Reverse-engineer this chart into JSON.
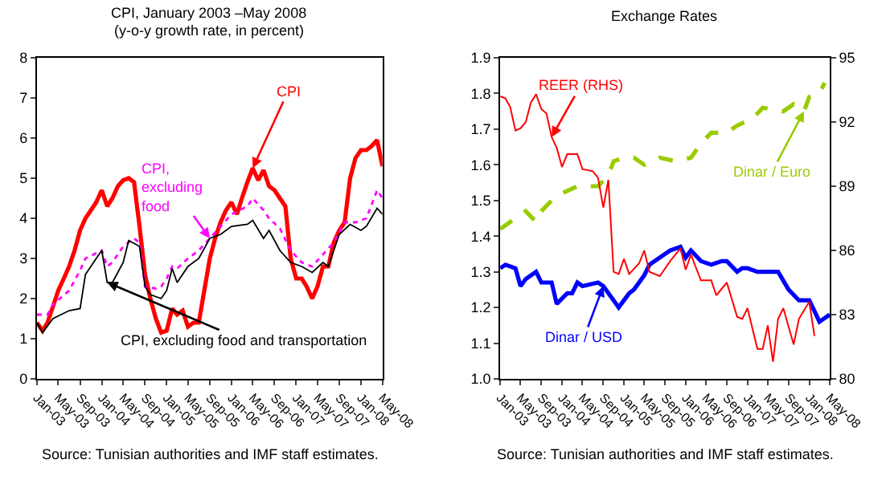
{
  "chart_data": [
    {
      "type": "line",
      "title": "CPI, January 2003 –May 2008",
      "subtitle": "(y-o-y growth rate, in percent)",
      "xlim": [
        "2003-01",
        "2008-05"
      ],
      "xticks": [
        {
          "value": "2003-01",
          "label": "Jan-03"
        },
        {
          "value": "2003-05",
          "label": "May-03"
        },
        {
          "value": "2003-09",
          "label": "Sep-03"
        },
        {
          "value": "2004-01",
          "label": "Jan-04"
        },
        {
          "value": "2004-05",
          "label": "May-04"
        },
        {
          "value": "2004-09",
          "label": "Sep-04"
        },
        {
          "value": "2005-01",
          "label": "Jan-05"
        },
        {
          "value": "2005-05",
          "label": "May-05"
        },
        {
          "value": "2005-09",
          "label": "Sep-05"
        },
        {
          "value": "2006-01",
          "label": "Jan-06"
        },
        {
          "value": "2006-05",
          "label": "May-06"
        },
        {
          "value": "2006-09",
          "label": "Sep-06"
        },
        {
          "value": "2007-01",
          "label": "Jan-07"
        },
        {
          "value": "2007-05",
          "label": "May-07"
        },
        {
          "value": "2007-09",
          "label": "Sep-07"
        },
        {
          "value": "2008-01",
          "label": "Jan-08"
        },
        {
          "value": "2008-05",
          "label": "May-08"
        }
      ],
      "ylim": [
        0,
        8
      ],
      "yticks": [
        0,
        1,
        2,
        3,
        4,
        5,
        6,
        7,
        8
      ],
      "series": [
        {
          "name": "CPI",
          "color": "#ff0000",
          "line_style": "solid",
          "x": [
            "2003-01",
            "2003-02",
            "2003-03",
            "2003-04",
            "2003-05",
            "2003-06",
            "2003-07",
            "2003-08",
            "2003-09",
            "2003-10",
            "2003-11",
            "2003-12",
            "2004-01",
            "2004-02",
            "2004-03",
            "2004-04",
            "2004-05",
            "2004-06",
            "2004-07",
            "2004-08",
            "2004-09",
            "2004-10",
            "2004-11",
            "2004-12",
            "2005-01",
            "2005-02",
            "2005-03",
            "2005-04",
            "2005-05",
            "2005-06",
            "2005-07",
            "2005-08",
            "2005-09",
            "2005-10",
            "2005-11",
            "2005-12",
            "2006-01",
            "2006-02",
            "2006-03",
            "2006-04",
            "2006-05",
            "2006-06",
            "2006-07",
            "2006-08",
            "2006-09",
            "2006-10",
            "2006-11",
            "2006-12",
            "2007-01",
            "2007-02",
            "2007-03",
            "2007-04",
            "2007-05",
            "2007-06",
            "2007-07",
            "2007-08",
            "2007-09",
            "2007-10",
            "2007-11",
            "2007-12",
            "2008-01",
            "2008-02",
            "2008-03",
            "2008-04",
            "2008-05"
          ],
          "values": [
            1.4,
            1.2,
            1.4,
            1.8,
            2.2,
            2.5,
            2.8,
            3.2,
            3.7,
            4.0,
            4.2,
            4.4,
            4.7,
            4.3,
            4.5,
            4.8,
            4.95,
            5.0,
            4.9,
            3.8,
            2.6,
            2.0,
            1.5,
            1.15,
            1.2,
            1.75,
            1.6,
            1.7,
            1.3,
            1.4,
            1.4,
            2.2,
            3.0,
            3.5,
            3.9,
            4.2,
            4.4,
            4.1,
            4.5,
            4.9,
            5.25,
            4.95,
            5.2,
            4.8,
            4.7,
            4.5,
            4.3,
            3.0,
            2.5,
            2.5,
            2.3,
            2.0,
            2.3,
            2.8,
            2.8,
            3.4,
            3.7,
            3.9,
            5.0,
            5.5,
            5.7,
            5.7,
            5.8,
            5.95,
            5.3
          ]
        },
        {
          "name": "CPI, excluding food",
          "color": "#ff00ff",
          "line_style": "dotted",
          "x": [
            "2003-01",
            "2003-03",
            "2003-04",
            "2003-07",
            "2003-09",
            "2003-10",
            "2004-01",
            "2004-02",
            "2004-03",
            "2004-05",
            "2004-07",
            "2004-08",
            "2004-09",
            "2004-11",
            "2004-12",
            "2005-01",
            "2005-02",
            "2005-03",
            "2005-05",
            "2005-07",
            "2005-09",
            "2005-11",
            "2006-01",
            "2006-04",
            "2006-05",
            "2006-07",
            "2006-08",
            "2006-10",
            "2006-12",
            "2007-02",
            "2007-04",
            "2007-06",
            "2007-08",
            "2007-10",
            "2007-12",
            "2008-02",
            "2008-04",
            "2008-05"
          ],
          "values": [
            1.6,
            1.6,
            1.85,
            2.2,
            2.7,
            3.0,
            3.2,
            2.8,
            2.9,
            3.3,
            3.5,
            3.4,
            2.3,
            2.25,
            2.3,
            2.5,
            2.8,
            2.75,
            3.0,
            3.2,
            3.5,
            3.8,
            4.1,
            4.3,
            4.5,
            4.2,
            4.0,
            3.75,
            3.2,
            2.9,
            2.8,
            3.1,
            3.4,
            3.9,
            3.9,
            4.0,
            4.7,
            4.5
          ]
        },
        {
          "name": "CPI, excluding food and transportation",
          "color": "#000000",
          "line_style": "solid",
          "x": [
            "2003-01",
            "2003-02",
            "2003-04",
            "2003-07",
            "2003-09",
            "2003-10",
            "2003-12",
            "2004-01",
            "2004-02",
            "2004-03",
            "2004-05",
            "2004-06",
            "2004-08",
            "2004-09",
            "2004-10",
            "2004-12",
            "2005-01",
            "2005-02",
            "2005-03",
            "2005-05",
            "2005-07",
            "2005-09",
            "2005-11",
            "2006-01",
            "2006-04",
            "2006-05",
            "2006-07",
            "2006-08",
            "2006-10",
            "2006-12",
            "2007-02",
            "2007-04",
            "2007-06",
            "2007-07",
            "2007-09",
            "2007-11",
            "2008-01",
            "2008-02",
            "2008-04",
            "2008-05"
          ],
          "values": [
            1.4,
            1.15,
            1.5,
            1.7,
            1.75,
            2.6,
            3.0,
            3.2,
            2.4,
            2.4,
            2.9,
            3.45,
            3.3,
            2.3,
            2.1,
            2.0,
            2.2,
            2.75,
            2.4,
            2.8,
            3.0,
            3.5,
            3.6,
            3.8,
            3.85,
            3.95,
            3.5,
            3.7,
            3.2,
            2.9,
            2.8,
            2.65,
            2.9,
            2.8,
            3.6,
            3.85,
            3.7,
            3.8,
            4.25,
            4.1
          ]
        }
      ],
      "annotations": [
        "Source: Tunisian authorities and IMF staff estimates."
      ]
    },
    {
      "type": "line",
      "title": "Exchange Rates",
      "xlim": [
        "2003-01",
        "2008-05"
      ],
      "xticks": [
        {
          "value": "2003-01",
          "label": "Jan-03"
        },
        {
          "value": "2003-05",
          "label": "May-03"
        },
        {
          "value": "2003-09",
          "label": "Sep-03"
        },
        {
          "value": "2004-01",
          "label": "Jan-04"
        },
        {
          "value": "2004-05",
          "label": "May-04"
        },
        {
          "value": "2004-09",
          "label": "Sep-04"
        },
        {
          "value": "2005-01",
          "label": "Jan-05"
        },
        {
          "value": "2005-05",
          "label": "May-05"
        },
        {
          "value": "2005-09",
          "label": "Sep-05"
        },
        {
          "value": "2006-01",
          "label": "Jan-06"
        },
        {
          "value": "2006-05",
          "label": "May-06"
        },
        {
          "value": "2006-09",
          "label": "Sep-06"
        },
        {
          "value": "2007-01",
          "label": "Jan-07"
        },
        {
          "value": "2007-05",
          "label": "May-07"
        },
        {
          "value": "2007-09",
          "label": "Sep-07"
        },
        {
          "value": "2008-01",
          "label": "Jan-08"
        },
        {
          "value": "2008-05",
          "label": "May-08"
        }
      ],
      "ylim": [
        1.0,
        1.9
      ],
      "yticks": [
        {
          "value": 1.0,
          "label": "1.0"
        },
        1.1,
        1.2,
        1.3,
        1.4,
        1.5,
        1.6,
        1.7,
        1.8,
        1.9
      ],
      "y2lim": [
        80,
        95
      ],
      "y2ticks": [
        80,
        83,
        86,
        89,
        92,
        95
      ],
      "series": [
        {
          "name": "REER (RHS)",
          "color": "#ff0000",
          "line_style": "solid",
          "axis": "y2",
          "x": [
            "2003-01",
            "2003-02",
            "2003-03",
            "2003-04",
            "2003-05",
            "2003-06",
            "2003-07",
            "2003-08",
            "2003-09",
            "2003-10",
            "2003-11",
            "2003-12",
            "2004-01",
            "2004-02",
            "2004-04",
            "2004-05",
            "2004-07",
            "2004-08",
            "2004-09",
            "2004-10",
            "2004-11",
            "2004-12",
            "2005-01",
            "2005-02",
            "2005-04",
            "2005-05",
            "2005-06",
            "2005-08",
            "2005-10",
            "2005-12",
            "2006-01",
            "2006-02",
            "2006-04",
            "2006-06",
            "2006-07",
            "2006-09",
            "2006-11",
            "2006-12",
            "2007-01",
            "2007-03",
            "2007-04",
            "2007-05",
            "2007-06",
            "2007-07",
            "2007-08",
            "2007-10",
            "2007-11",
            "2008-01",
            "2008-02"
          ],
          "values": [
            93.2,
            93.1,
            92.7,
            91.6,
            91.7,
            92.0,
            92.9,
            93.3,
            92.6,
            92.4,
            91.3,
            90.8,
            89.9,
            90.5,
            90.5,
            89.8,
            89.7,
            89.4,
            88.0,
            89.3,
            85.0,
            84.9,
            85.6,
            84.9,
            85.4,
            86.0,
            85.0,
            84.8,
            85.5,
            86.1,
            85.1,
            85.8,
            84.6,
            84.6,
            83.9,
            84.5,
            82.9,
            82.8,
            83.3,
            81.4,
            81.4,
            82.5,
            80.8,
            82.8,
            83.3,
            81.6,
            82.8,
            83.6,
            82.0
          ]
        },
        {
          "name": "Dinar / USD",
          "color": "#0000ff",
          "line_style": "solid",
          "x": [
            "2003-01",
            "2003-02",
            "2003-04",
            "2003-05",
            "2003-06",
            "2003-08",
            "2003-09",
            "2003-11",
            "2003-12",
            "2004-02",
            "2004-03",
            "2004-04",
            "2004-05",
            "2004-08",
            "2004-09",
            "2004-11",
            "2004-12",
            "2005-02",
            "2005-03",
            "2005-05",
            "2005-06",
            "2005-07",
            "2005-09",
            "2005-10",
            "2005-12",
            "2006-01",
            "2006-02",
            "2006-04",
            "2006-06",
            "2006-08",
            "2006-09",
            "2006-11",
            "2006-12",
            "2007-01",
            "2007-03",
            "2007-07",
            "2007-09",
            "2007-11",
            "2008-01",
            "2008-02",
            "2008-03",
            "2008-04",
            "2008-05"
          ],
          "values": [
            1.31,
            1.32,
            1.31,
            1.26,
            1.28,
            1.3,
            1.27,
            1.27,
            1.21,
            1.24,
            1.24,
            1.27,
            1.26,
            1.27,
            1.26,
            1.22,
            1.2,
            1.24,
            1.25,
            1.29,
            1.32,
            1.33,
            1.35,
            1.36,
            1.37,
            1.34,
            1.36,
            1.33,
            1.32,
            1.33,
            1.33,
            1.3,
            1.31,
            1.31,
            1.3,
            1.3,
            1.25,
            1.22,
            1.22,
            1.19,
            1.16,
            1.17,
            1.18
          ]
        },
        {
          "name": "Dinar / Euro",
          "color": "#99cc00",
          "line_style": "dashed",
          "x": [
            "2003-01",
            "2003-04",
            "2003-06",
            "2003-08",
            "2003-09",
            "2003-11",
            "2004-01",
            "2004-04",
            "2004-08",
            "2004-10",
            "2004-11",
            "2005-01",
            "2005-03",
            "2005-05",
            "2005-08",
            "2005-11",
            "2006-02",
            "2006-04",
            "2006-06",
            "2006-09",
            "2006-11",
            "2007-02",
            "2007-04",
            "2007-08",
            "2007-10",
            "2007-12",
            "2008-01",
            "2008-03",
            "2008-04"
          ],
          "values": [
            1.42,
            1.45,
            1.47,
            1.44,
            1.47,
            1.5,
            1.52,
            1.54,
            1.54,
            1.57,
            1.61,
            1.62,
            1.62,
            1.6,
            1.62,
            1.61,
            1.62,
            1.66,
            1.69,
            1.69,
            1.71,
            1.73,
            1.76,
            1.75,
            1.77,
            1.75,
            1.79,
            1.8,
            1.83
          ]
        }
      ],
      "annotations": [
        "Source: Tunisian authorities and IMF staff estimates."
      ]
    }
  ]
}
